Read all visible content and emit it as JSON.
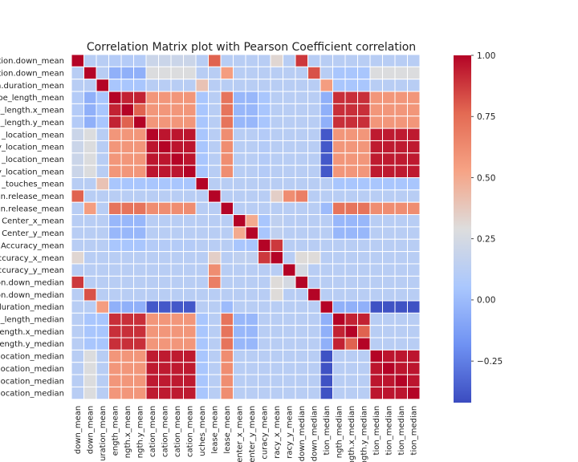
{
  "chart_data": {
    "type": "heatmap",
    "title": "Correlation Matrix plot with Pearson Coefficient correlation",
    "row_labels": [
      "ation.down_mean",
      "ation.down_mean",
      "n.duration_mean",
      "pe_length_mean",
      "e_length.x_mean",
      "_length.y_mean",
      "_location_mean",
      "y_location_mean",
      "_location_mean",
      "y_location_mean",
      "_touches_mean",
      "n.release_mean",
      "n.release_mean",
      "Center_x_mean",
      "Center_y_mean",
      "Accuracy_mean",
      "ccuracy_x_mean",
      "ccuracy_y_mean",
      "on.down_median",
      "on.down_median",
      "duration_median",
      "_length_median",
      "ength.x_median",
      "ength.y_median",
      "location_median",
      "location_median",
      "location_median",
      "location_median"
    ],
    "col_labels": [
      "down_mean",
      "down_mean",
      "uration_mean",
      "ength_mean",
      "ngth.x_mean",
      "ngth.y_mean",
      "cation_mean",
      "cation_mean",
      "cation_mean",
      "cation_mean",
      "uches_mean",
      "lease_mean",
      "lease_mean",
      "enter_x_mean",
      "enter_y_mean",
      "curacy_mean",
      "racy_x_mean",
      "racy_y_mean",
      "down_median",
      "down_median",
      "tion_median",
      "ngth_median",
      "ngth.x_median",
      "ngth.y_median",
      "tion_median",
      "tion_median",
      "tion_median",
      "tion_median"
    ],
    "groups": [
      0,
      1,
      2,
      3,
      3,
      3,
      4,
      4,
      4,
      4,
      5,
      6,
      7,
      8,
      8,
      9,
      10,
      11,
      12,
      13,
      14,
      15,
      15,
      15,
      16,
      16,
      16,
      16
    ],
    "values": {
      "diagonal": 1.0,
      "within_group": {
        "3": {
          "default": 0.93,
          "pairs": [
            [
              1,
              2,
              0.78
            ]
          ]
        },
        "4": {
          "default": 0.96
        },
        "8": {
          "default": 0.5
        },
        "15": {
          "default": 0.93,
          "pairs": [
            [
              1,
              2,
              0.78
            ]
          ]
        },
        "16": {
          "default": 0.96
        }
      },
      "between_groups": [
        {
          "a": 3,
          "b": 4,
          "r": 0.58
        },
        {
          "a": 3,
          "b": 7,
          "r": 0.72
        },
        {
          "a": 4,
          "b": 7,
          "r": 0.62
        },
        {
          "a": 3,
          "b": 15,
          "r": 0.9
        },
        {
          "a": 4,
          "b": 16,
          "r": 0.95
        },
        {
          "a": 3,
          "b": 16,
          "r": 0.58
        },
        {
          "a": 4,
          "b": 15,
          "r": 0.58
        },
        {
          "a": 7,
          "b": 15,
          "r": 0.72
        },
        {
          "a": 7,
          "b": 16,
          "r": 0.62
        },
        {
          "a": 14,
          "b": 4,
          "r": -0.38
        },
        {
          "a": 14,
          "b": 16,
          "r": -0.4
        },
        {
          "a": 14,
          "b": 3,
          "r": -0.05
        },
        {
          "a": 14,
          "b": 15,
          "r": -0.05
        },
        {
          "a": 14,
          "b": 2,
          "r": 0.55
        },
        {
          "a": 14,
          "b": 7,
          "r": 0.0
        },
        {
          "a": 0,
          "b": 12,
          "r": 0.88
        },
        {
          "a": 0,
          "b": 6,
          "r": 0.78
        },
        {
          "a": 1,
          "b": 13,
          "r": 0.82
        },
        {
          "a": 1,
          "b": 7,
          "r": 0.55
        },
        {
          "a": 6,
          "b": 12,
          "r": 0.68
        },
        {
          "a": 6,
          "b": 11,
          "r": 0.62
        },
        {
          "a": 2,
          "b": 5,
          "r": 0.4
        },
        {
          "a": 9,
          "b": 10,
          "r": 0.88
        },
        {
          "a": 10,
          "b": 0,
          "r": 0.32
        },
        {
          "a": 10,
          "b": 12,
          "r": 0.3
        },
        {
          "a": 10,
          "b": 6,
          "r": 0.35
        },
        {
          "a": 10,
          "b": 13,
          "r": 0.3
        },
        {
          "a": 10,
          "b": 8,
          "r": 0.15
        },
        {
          "a": 11,
          "b": 12,
          "r": 0.25
        },
        {
          "a": 0,
          "b": 3,
          "r": 0.1
        },
        {
          "a": 0,
          "b": 4,
          "r": 0.2
        },
        {
          "a": 1,
          "b": 4,
          "r": 0.28
        },
        {
          "a": 1,
          "b": 16,
          "r": 0.28
        },
        {
          "a": 1,
          "b": 3,
          "r": -0.05
        },
        {
          "a": 1,
          "b": 15,
          "r": 0.05
        },
        {
          "a": 8,
          "b": 3,
          "r": -0.02
        },
        {
          "a": 8,
          "b": 15,
          "r": -0.02
        },
        {
          "a": 8,
          "b": 9,
          "r": 0.05
        },
        {
          "a": 9,
          "b": 3,
          "r": 0.05
        },
        {
          "a": 9,
          "b": 4,
          "r": 0.1
        },
        {
          "a": 5,
          "b": 3,
          "r": 0.05
        },
        {
          "a": 5,
          "b": 4,
          "r": 0.05
        },
        {
          "a": 5,
          "b": 16,
          "r": 0.05
        },
        {
          "a": 5,
          "b": 15,
          "r": 0.05
        },
        {
          "a": 2,
          "b": 3,
          "r": 0.05
        },
        {
          "a": 2,
          "b": 15,
          "r": 0.05
        }
      ],
      "default_between": 0.12
    },
    "colorbar": {
      "vmin": -0.42,
      "vmax": 1.0,
      "ticks": [
        1.0,
        0.75,
        0.5,
        0.25,
        0.0,
        -0.25
      ],
      "tick_labels": [
        "1.00",
        "0.75",
        "0.50",
        "0.25",
        "0.00",
        "−0.25"
      ],
      "colormap": "coolwarm",
      "colormap_stops": [
        "#3b4cc0",
        "#6f92f3",
        "#aac7fd",
        "#dddddd",
        "#f6a385",
        "#e36a53",
        "#b40426"
      ]
    },
    "grid_line_color": "#ffffff"
  }
}
